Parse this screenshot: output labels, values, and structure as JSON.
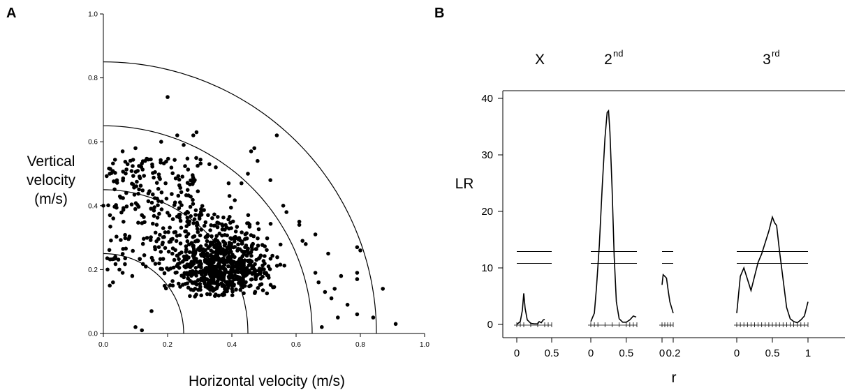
{
  "chart_data": [
    {
      "type": "scatter",
      "panel_label": "A",
      "xlabel": "Horizontal velocity (m/s)",
      "ylabel": "Vertical velocity (m/s)",
      "xlim": [
        0.0,
        1.0
      ],
      "ylim": [
        0.0,
        1.0
      ],
      "x_ticks": [
        "0.0",
        "0.2",
        "0.4",
        "0.6",
        "0.8",
        "1.0"
      ],
      "y_ticks": [
        "0.0",
        "0.2",
        "0.4",
        "0.6",
        "0.8",
        "1.0"
      ],
      "grid": false,
      "reference_arcs_radius": [
        0.25,
        0.45,
        0.65,
        0.85
      ],
      "marker_color": "#000000",
      "points": [
        [
          0.2,
          0.74
        ],
        [
          0.28,
          0.62
        ],
        [
          0.29,
          0.63
        ],
        [
          0.46,
          0.57
        ],
        [
          0.47,
          0.58
        ],
        [
          0.54,
          0.62
        ],
        [
          0.39,
          0.47
        ],
        [
          0.45,
          0.5
        ],
        [
          0.43,
          0.47
        ],
        [
          0.61,
          0.35
        ],
        [
          0.61,
          0.34
        ],
        [
          0.66,
          0.31
        ],
        [
          0.7,
          0.25
        ],
        [
          0.79,
          0.27
        ],
        [
          0.8,
          0.26
        ],
        [
          0.79,
          0.19
        ],
        [
          0.79,
          0.17
        ],
        [
          0.76,
          0.09
        ],
        [
          0.73,
          0.05
        ],
        [
          0.84,
          0.05
        ],
        [
          0.87,
          0.14
        ],
        [
          0.91,
          0.03
        ],
        [
          0.79,
          0.06
        ],
        [
          0.68,
          0.02
        ],
        [
          0.02,
          0.15
        ],
        [
          0.03,
          0.16
        ],
        [
          0.05,
          0.2
        ],
        [
          0.06,
          0.19
        ],
        [
          0.09,
          0.18
        ],
        [
          0.1,
          0.02
        ],
        [
          0.12,
          0.01
        ],
        [
          0.15,
          0.07
        ],
        [
          0.0,
          0.4
        ],
        [
          0.02,
          0.5
        ],
        [
          0.06,
          0.57
        ],
        [
          0.1,
          0.58
        ],
        [
          0.13,
          0.54
        ],
        [
          0.18,
          0.6
        ],
        [
          0.23,
          0.62
        ],
        [
          0.25,
          0.59
        ],
        [
          0.33,
          0.53
        ],
        [
          0.35,
          0.52
        ],
        [
          0.48,
          0.54
        ],
        [
          0.52,
          0.48
        ],
        [
          0.56,
          0.4
        ],
        [
          0.57,
          0.38
        ],
        [
          0.62,
          0.29
        ],
        [
          0.63,
          0.28
        ],
        [
          0.66,
          0.19
        ],
        [
          0.67,
          0.16
        ],
        [
          0.69,
          0.13
        ],
        [
          0.71,
          0.11
        ],
        [
          0.72,
          0.14
        ],
        [
          0.74,
          0.18
        ]
      ]
    },
    {
      "type": "line",
      "panel_label": "B",
      "ylabel": "LR",
      "xlabel": "r",
      "ylim": [
        0,
        40
      ],
      "y_ticks": [
        "0",
        "10",
        "20",
        "30",
        "40"
      ],
      "grid": false,
      "threshold_lines": [
        10.8,
        12.9
      ],
      "line_color": "#000000",
      "series": [
        {
          "label": "X",
          "xlim": [
            0,
            0.5
          ],
          "x_ticks": [
            "0",
            "0.5"
          ],
          "x": [
            0.0,
            0.05,
            0.08,
            0.1,
            0.12,
            0.15,
            0.2,
            0.25,
            0.3,
            0.32,
            0.35,
            0.38,
            0.4
          ],
          "values": [
            0.0,
            0.5,
            2.5,
            5.5,
            2.8,
            0.8,
            0.2,
            0.1,
            0.1,
            0.5,
            0.3,
            0.8,
            0.9
          ]
        },
        {
          "label_base": "2",
          "label_sup": "nd",
          "xlim": [
            0,
            0.65
          ],
          "x_ticks": [
            "0",
            "0.5"
          ],
          "x": [
            0.0,
            0.05,
            0.08,
            0.12,
            0.16,
            0.2,
            0.23,
            0.25,
            0.27,
            0.3,
            0.33,
            0.36,
            0.4,
            0.45,
            0.5,
            0.55,
            0.6,
            0.64
          ],
          "values": [
            0.5,
            2.0,
            6.5,
            14.0,
            24.0,
            33.0,
            37.5,
            37.8,
            34.0,
            24.0,
            12.0,
            4.0,
            1.0,
            0.4,
            0.4,
            0.8,
            1.5,
            1.3
          ]
        },
        {
          "xlim": [
            0,
            0.2
          ],
          "x_ticks": [
            "0",
            "0.2"
          ],
          "x": [
            0.0,
            0.02,
            0.05,
            0.08,
            0.11,
            0.14,
            0.17,
            0.2
          ],
          "values": [
            7.0,
            8.8,
            8.5,
            8.2,
            6.0,
            4.0,
            3.0,
            2.0
          ]
        },
        {
          "label_base": "3",
          "label_sup": "rd",
          "xlim": [
            0,
            1
          ],
          "x_ticks": [
            "0",
            "0.5",
            "1"
          ],
          "x": [
            0.0,
            0.05,
            0.1,
            0.15,
            0.2,
            0.25,
            0.3,
            0.35,
            0.4,
            0.45,
            0.5,
            0.53,
            0.56,
            0.6,
            0.65,
            0.7,
            0.75,
            0.8,
            0.85,
            0.9,
            0.95,
            1.0
          ],
          "values": [
            2.0,
            8.5,
            10.0,
            8.0,
            6.0,
            8.5,
            11.0,
            12.5,
            14.5,
            16.5,
            19.0,
            18.0,
            17.5,
            13.0,
            8.0,
            3.0,
            1.0,
            0.5,
            0.3,
            0.8,
            1.5,
            4.0
          ]
        }
      ]
    }
  ]
}
